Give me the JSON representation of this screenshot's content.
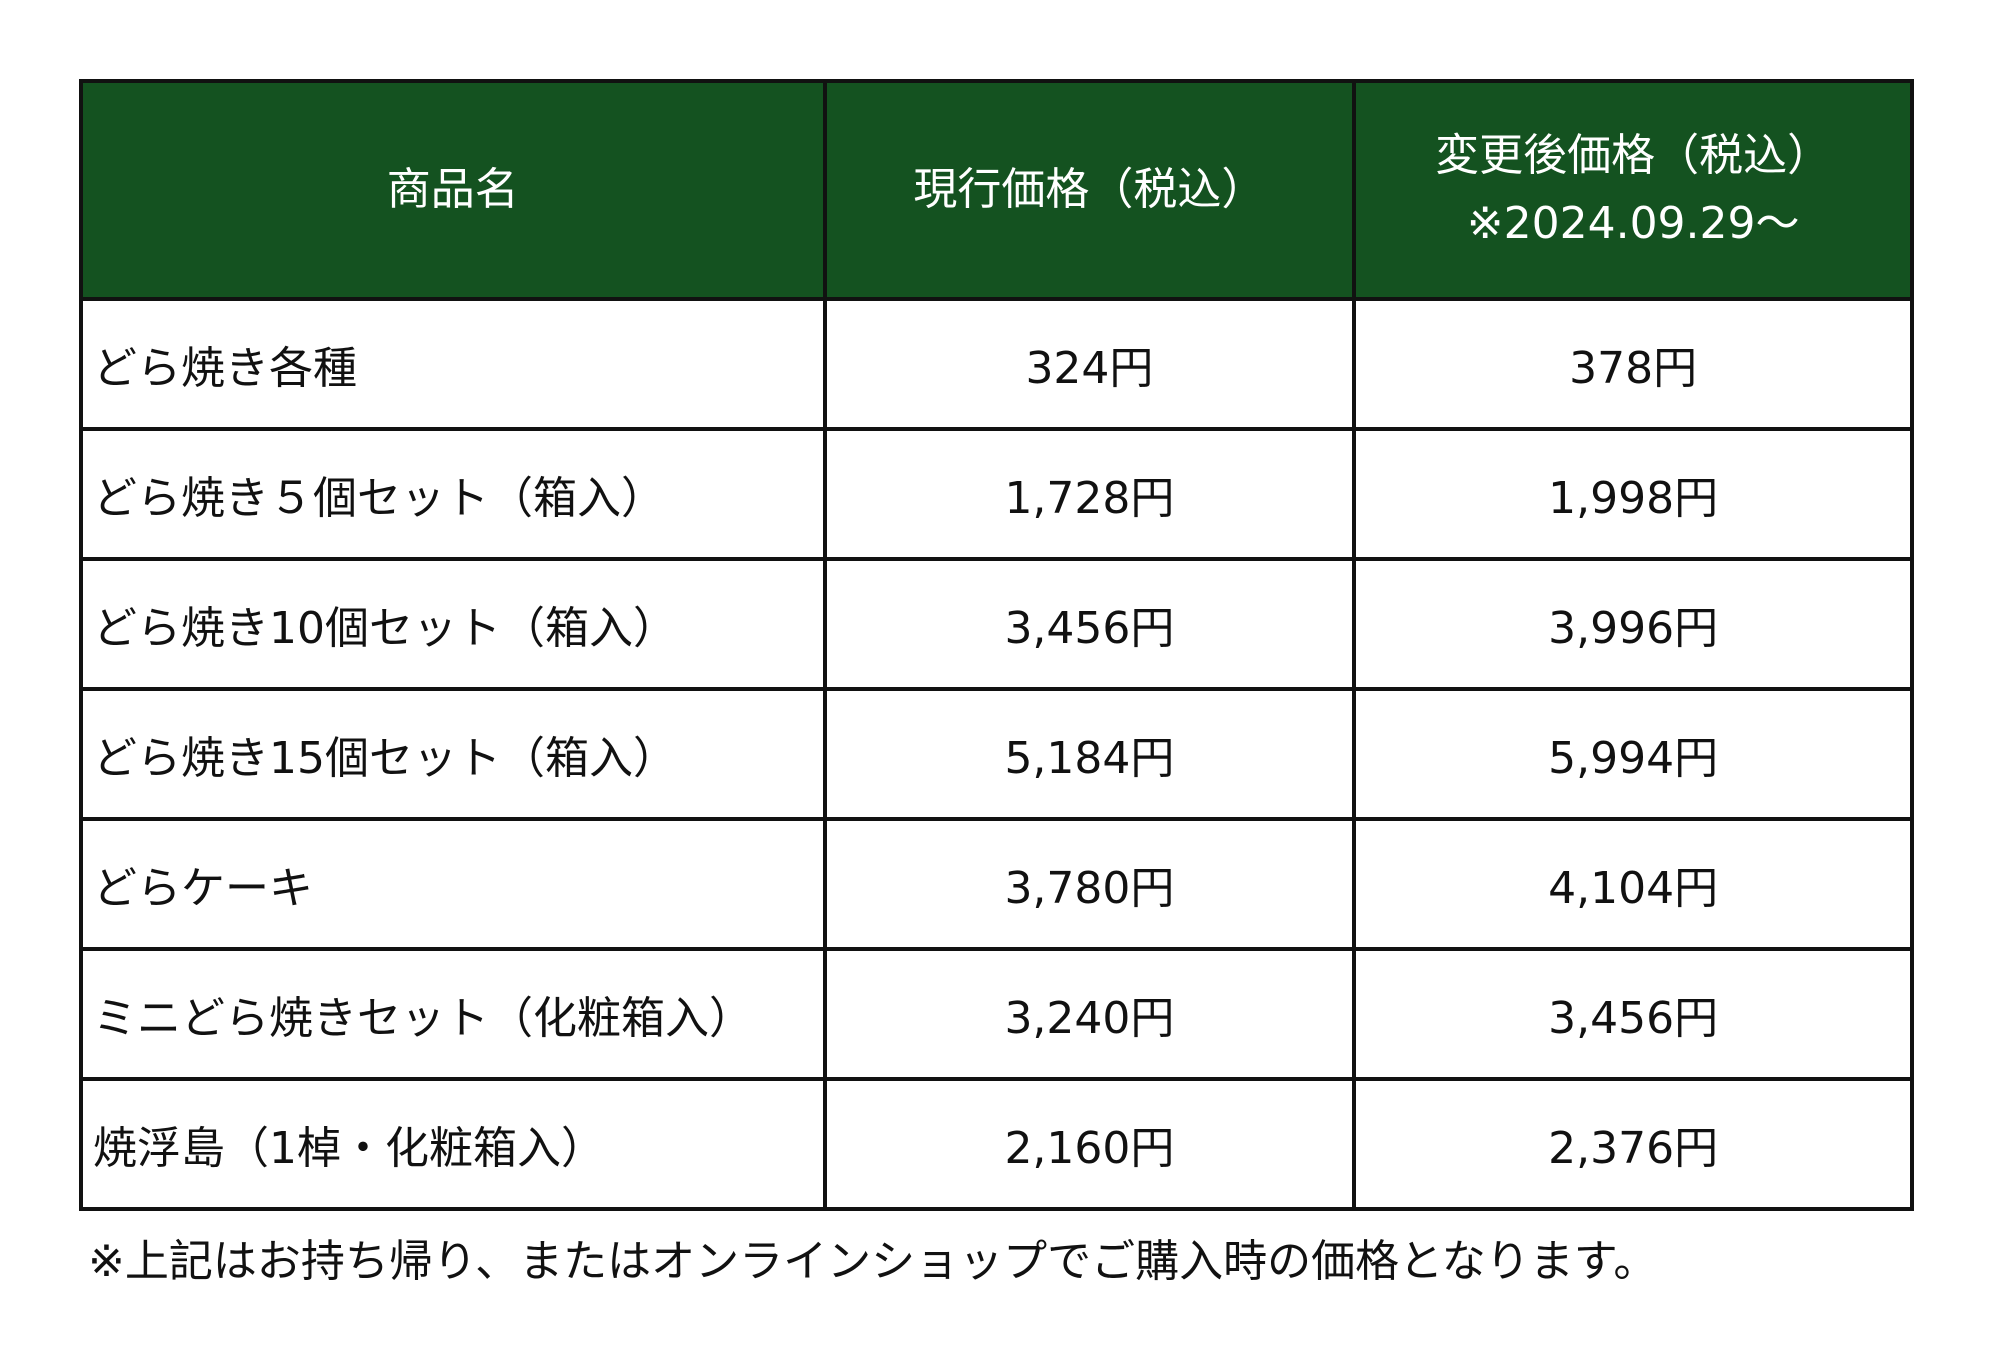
{
  "header": {
    "product": "商品名",
    "current": "現行価格（税込）",
    "new": "変更後価格（税込）",
    "new_date": "※2024.09.29〜"
  },
  "rows": [
    {
      "name": "どら焼き各種",
      "current": "324円",
      "new": "378円"
    },
    {
      "name": "どら焼き５個セット（箱入）",
      "current": "1,728円",
      "new": "1,998円"
    },
    {
      "name": "どら焼き10個セット（箱入）",
      "current": "3,456円",
      "new": "3,996円"
    },
    {
      "name": "どら焼き15個セット（箱入）",
      "current": "5,184円",
      "new": "5,994円"
    },
    {
      "name": "どらケーキ",
      "current": "3,780円",
      "new": "4,104円"
    },
    {
      "name": "ミニどら焼きセット（化粧箱入）",
      "current": "3,240円",
      "new": "3,456円"
    },
    {
      "name": "焼浮島（1棹・化粧箱入）",
      "current": "2,160円",
      "new": "2,376円"
    }
  ],
  "note": "※上記はお持ち帰り、またはオンラインショップでご購入時の価格となります。",
  "colors": {
    "header_bg": "#145220"
  }
}
